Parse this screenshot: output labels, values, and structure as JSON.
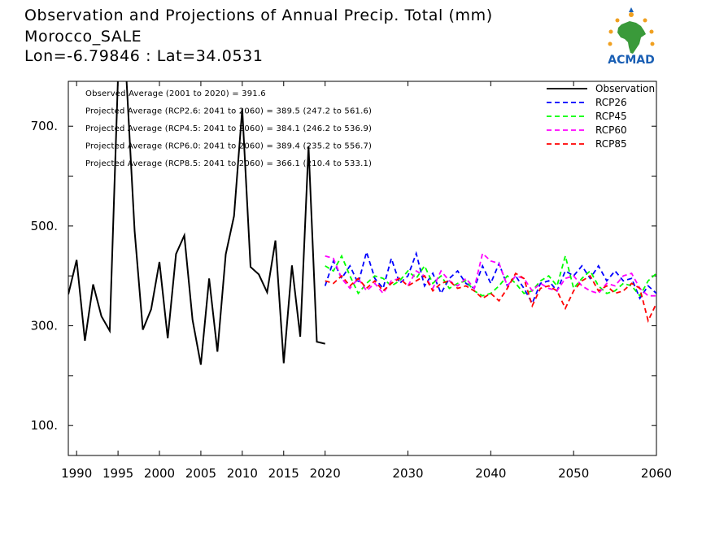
{
  "header": {
    "title": "Observation and Projections of Annual Precip. Total (mm)",
    "location": "Morocco_SALE",
    "coords": "Lon=-6.79846 : Lat=34.0531"
  },
  "logo": {
    "text": "ACMAD",
    "icon": "africa-map-logo-icon"
  },
  "colors": {
    "observation": "#000000",
    "rcp26": "#0000ff",
    "rcp45": "#00ff00",
    "rcp60": "#ff00ff",
    "rcp85": "#ff0000",
    "logo_text": "#1a5fb4",
    "logo_map": "#3a9a3a",
    "logo_sun": "#f0a020"
  },
  "chart_data": {
    "type": "line",
    "title": "Observation and Projections of Annual Precip. Total (mm)",
    "xlim": [
      1989,
      2060
    ],
    "ylim": [
      40,
      790
    ],
    "x_ticks": [
      1990,
      1995,
      2000,
      2005,
      2010,
      2015,
      2020,
      2030,
      2040,
      2050,
      2060
    ],
    "y_ticks": [
      100,
      300,
      500,
      700
    ],
    "y_tick_labels": [
      "100.",
      "300.",
      "500.",
      "700."
    ],
    "legend_position": "top-right",
    "annotations": [
      "Observed Average (2001 to 2020) = 391.6",
      "Projected Average (RCP2.6: 2041 to 2060) = 389.5 (247.2 to 561.6)",
      "Projected Average (RCP4.5: 2041 to 2060) = 384.1 (246.2 to 536.9)",
      "Projected Average (RCP6.0: 2041 to 2060) = 389.4 (235.2 to 556.7)",
      "Projected Average (RCP8.5: 2041 to 2060) = 366.1 (210.4 to 533.1)"
    ],
    "series": [
      {
        "name": "Observation",
        "style": "solid",
        "x": [
          1989,
          1990,
          1991,
          1992,
          1993,
          1994,
          1995,
          1996,
          1997,
          1998,
          1999,
          2000,
          2001,
          2002,
          2003,
          2004,
          2005,
          2006,
          2007,
          2008,
          2009,
          2010,
          2011,
          2012,
          2013,
          2014,
          2015,
          2016,
          2017,
          2018,
          2019,
          2020
        ],
        "values": [
          363,
          432,
          270,
          383,
          319,
          290,
          800,
          800,
          490,
          292,
          333,
          428,
          275,
          444,
          481,
          312,
          222,
          395,
          248,
          443,
          520,
          735,
          418,
          403,
          367,
          471,
          225,
          421,
          278,
          660,
          268,
          264
        ]
      },
      {
        "name": "RCP26",
        "style": "dashed",
        "x": [
          2020,
          2021,
          2022,
          2023,
          2024,
          2025,
          2026,
          2027,
          2028,
          2029,
          2030,
          2031,
          2032,
          2033,
          2034,
          2035,
          2036,
          2037,
          2038,
          2039,
          2040,
          2041,
          2042,
          2043,
          2044,
          2045,
          2046,
          2047,
          2048,
          2049,
          2050,
          2051,
          2052,
          2053,
          2054,
          2055,
          2056,
          2057,
          2058,
          2059,
          2060
        ],
        "values": [
          380,
          430,
          395,
          420,
          385,
          448,
          395,
          375,
          435,
          385,
          400,
          445,
          380,
          405,
          365,
          395,
          410,
          385,
          375,
          420,
          385,
          425,
          380,
          400,
          375,
          345,
          385,
          390,
          370,
          410,
          400,
          420,
          395,
          420,
          390,
          410,
          390,
          395,
          355,
          380,
          365
        ]
      },
      {
        "name": "RCP45",
        "style": "dashed",
        "x": [
          2020,
          2021,
          2022,
          2023,
          2024,
          2025,
          2026,
          2027,
          2028,
          2029,
          2030,
          2031,
          2032,
          2033,
          2034,
          2035,
          2036,
          2037,
          2038,
          2039,
          2040,
          2041,
          2042,
          2043,
          2044,
          2045,
          2046,
          2047,
          2048,
          2049,
          2050,
          2051,
          2052,
          2053,
          2054,
          2055,
          2056,
          2057,
          2058,
          2059,
          2060
        ],
        "values": [
          420,
          410,
          440,
          400,
          365,
          385,
          400,
          395,
          380,
          390,
          410,
          395,
          420,
          385,
          400,
          375,
          385,
          390,
          370,
          360,
          365,
          380,
          400,
          385,
          365,
          370,
          390,
          400,
          380,
          440,
          375,
          395,
          410,
          380,
          365,
          370,
          385,
          380,
          360,
          390,
          405
        ]
      },
      {
        "name": "RCP60",
        "style": "dashed",
        "x": [
          2020,
          2021,
          2022,
          2023,
          2024,
          2025,
          2026,
          2027,
          2028,
          2029,
          2030,
          2031,
          2032,
          2033,
          2034,
          2035,
          2036,
          2037,
          2038,
          2039,
          2040,
          2041,
          2042,
          2043,
          2044,
          2045,
          2046,
          2047,
          2048,
          2049,
          2050,
          2051,
          2052,
          2053,
          2054,
          2055,
          2056,
          2057,
          2058,
          2059,
          2060
        ],
        "values": [
          440,
          435,
          395,
          375,
          395,
          370,
          385,
          365,
          390,
          395,
          380,
          410,
          400,
          375,
          410,
          390,
          380,
          395,
          375,
          445,
          430,
          425,
          380,
          400,
          395,
          370,
          385,
          375,
          370,
          395,
          400,
          380,
          370,
          365,
          385,
          380,
          400,
          405,
          375,
          360,
          360
        ]
      },
      {
        "name": "RCP85",
        "style": "dashed",
        "x": [
          2020,
          2021,
          2022,
          2023,
          2024,
          2025,
          2026,
          2027,
          2028,
          2029,
          2030,
          2031,
          2032,
          2033,
          2034,
          2035,
          2036,
          2037,
          2038,
          2039,
          2040,
          2041,
          2042,
          2043,
          2044,
          2045,
          2046,
          2047,
          2048,
          2049,
          2050,
          2051,
          2052,
          2053,
          2054,
          2055,
          2056,
          2057,
          2058,
          2059,
          2060
        ],
        "values": [
          390,
          385,
          400,
          380,
          395,
          375,
          390,
          370,
          385,
          395,
          380,
          390,
          400,
          370,
          385,
          390,
          375,
          380,
          370,
          355,
          365,
          350,
          375,
          405,
          395,
          340,
          375,
          380,
          370,
          335,
          370,
          390,
          400,
          370,
          380,
          365,
          370,
          385,
          375,
          310,
          345
        ]
      }
    ]
  }
}
